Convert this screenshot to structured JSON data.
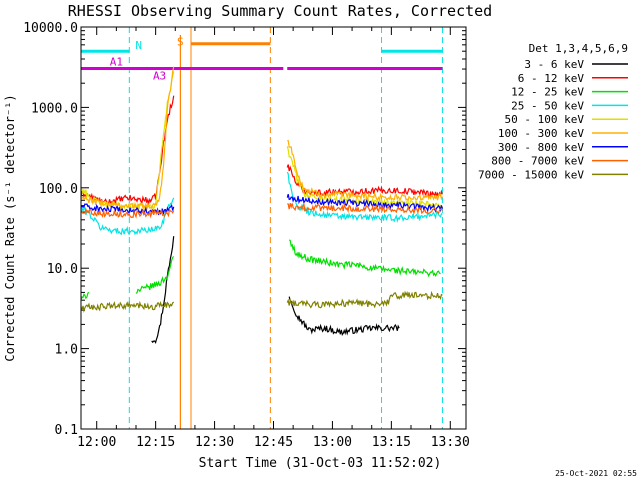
{
  "chart_data": {
    "type": "line",
    "title": "RHESSI Observing Summary Count Rates, Corrected",
    "xlabel": "Start Time (31-Oct-03 11:52:02)",
    "ylabel": "Corrected Count Rate (s⁻¹ detector⁻¹)",
    "yscale": "log",
    "ylim": [
      0.1,
      10000
    ],
    "xlim_minutes": [
      -4,
      94
    ],
    "x_ticks": [
      {
        "m": 0,
        "label": "12:00"
      },
      {
        "m": 15,
        "label": "12:15"
      },
      {
        "m": 30,
        "label": "12:30"
      },
      {
        "m": 45,
        "label": "12:45"
      },
      {
        "m": 60,
        "label": "13:00"
      },
      {
        "m": 75,
        "label": "13:15"
      },
      {
        "m": 90,
        "label": "13:30"
      }
    ],
    "y_ticks": [
      {
        "v": 0.1,
        "label": "0.1"
      },
      {
        "v": 1,
        "label": "1.0"
      },
      {
        "v": 10,
        "label": "10.0"
      },
      {
        "v": 100,
        "label": "100.0"
      },
      {
        "v": 1000,
        "label": "1000.0"
      },
      {
        "v": 10000,
        "label": "10000.0"
      }
    ],
    "legend_title": "Det 1,3,4,5,6,9",
    "legend_placement": "right",
    "timestamp": "25-Oct-2021 02:55",
    "annotations": {
      "night": {
        "label": "N",
        "color": "#00e5e5",
        "level": 5000,
        "intervals": [
          [
            -4,
            8.3
          ],
          [
            72.5,
            88
          ]
        ],
        "boundaries": [
          -4,
          8.3,
          72.5,
          88
        ]
      },
      "saa": {
        "label": "S",
        "color": "#ff8000",
        "level": 6200,
        "intervals": [
          [
            24,
            44.2
          ]
        ],
        "boundaries": [
          24,
          44.2
        ]
      },
      "attenuator": {
        "labels": [
          "A1",
          "A3"
        ],
        "color": "#d000d0",
        "level": 3050,
        "intervals": [
          [
            -4,
            47.5
          ],
          [
            48.5,
            88
          ]
        ],
        "label_m": [
          5,
          16
        ]
      },
      "markers": [
        {
          "m": 21.3,
          "color": "#ff8000",
          "style": "solid"
        }
      ]
    },
    "series": [
      {
        "name": "3 - 6 keV",
        "color": "#000000",
        "points": [
          [
            14,
            1.3
          ],
          [
            15,
            1.3
          ],
          [
            16,
            1.8
          ],
          [
            17,
            3.5
          ],
          [
            18,
            8
          ],
          [
            19,
            15
          ],
          [
            19.6,
            25
          ],
          [
            49,
            4.5
          ],
          [
            51,
            2.6
          ],
          [
            54,
            1.7
          ],
          [
            58,
            1.8
          ],
          [
            62,
            1.6
          ],
          [
            66,
            1.7
          ],
          [
            70,
            1.8
          ],
          [
            74,
            1.8
          ],
          [
            77,
            1.8
          ]
        ]
      },
      {
        "name": "6 - 12 keV",
        "color": "#ff0000",
        "points": [
          [
            -4,
            80
          ],
          [
            -3,
            85
          ],
          [
            -1,
            75
          ],
          [
            2,
            65
          ],
          [
            5,
            70
          ],
          [
            8,
            75
          ],
          [
            10,
            72
          ],
          [
            13,
            70
          ],
          [
            14,
            70
          ],
          [
            15,
            78
          ],
          [
            16,
            150
          ],
          [
            17,
            350
          ],
          [
            18,
            700
          ],
          [
            19,
            1100
          ],
          [
            19.6,
            1400
          ],
          [
            48.5,
            190
          ],
          [
            49.5,
            160
          ],
          [
            51,
            110
          ],
          [
            53,
            92
          ],
          [
            56,
            87
          ],
          [
            60,
            89
          ],
          [
            65,
            90
          ],
          [
            70,
            92
          ],
          [
            75,
            93
          ],
          [
            80,
            90
          ],
          [
            85,
            85
          ],
          [
            88,
            83
          ]
        ]
      },
      {
        "name": "12 - 25 keV",
        "color": "#00e000",
        "points": [
          [
            -4,
            4
          ],
          [
            -2,
            5
          ],
          [
            10,
            5.2
          ],
          [
            12,
            5.5
          ],
          [
            14,
            6
          ],
          [
            16,
            6.5
          ],
          [
            18,
            8
          ],
          [
            19.6,
            14
          ],
          [
            49,
            22
          ],
          [
            51,
            15
          ],
          [
            54,
            13
          ],
          [
            58,
            12
          ],
          [
            62,
            11
          ],
          [
            66,
            11
          ],
          [
            70,
            10
          ],
          [
            75,
            9.5
          ],
          [
            80,
            9
          ],
          [
            85,
            8.8
          ],
          [
            87.5,
            8.5
          ]
        ]
      },
      {
        "name": "25 - 50 keV",
        "color": "#00e5e5",
        "points": [
          [
            -4,
            55
          ],
          [
            -2,
            48
          ],
          [
            1,
            32
          ],
          [
            5,
            29
          ],
          [
            10,
            29
          ],
          [
            14,
            30
          ],
          [
            16,
            32
          ],
          [
            17,
            40
          ],
          [
            18,
            55
          ],
          [
            19.6,
            75
          ],
          [
            48.5,
            160
          ],
          [
            49.5,
            95
          ],
          [
            51,
            60
          ],
          [
            54,
            50
          ],
          [
            58,
            46
          ],
          [
            62,
            44
          ],
          [
            66,
            43
          ],
          [
            70,
            43
          ],
          [
            75,
            42
          ],
          [
            80,
            43
          ],
          [
            84,
            45
          ],
          [
            88,
            47
          ]
        ]
      },
      {
        "name": "50 - 100 keV",
        "color": "#e0e000",
        "points": [
          [
            -4,
            95
          ],
          [
            -3,
            90
          ],
          [
            -1,
            70
          ],
          [
            2,
            62
          ],
          [
            5,
            60
          ],
          [
            8,
            60
          ],
          [
            10,
            58
          ],
          [
            13,
            57
          ],
          [
            15,
            60
          ],
          [
            16,
            170
          ],
          [
            17,
            500
          ],
          [
            18,
            1100
          ],
          [
            19.6,
            2800
          ],
          [
            48.5,
            300
          ],
          [
            49.5,
            230
          ],
          [
            51,
            130
          ],
          [
            53,
            85
          ],
          [
            56,
            75
          ],
          [
            60,
            72
          ],
          [
            65,
            70
          ],
          [
            70,
            68
          ],
          [
            75,
            66
          ],
          [
            80,
            64
          ],
          [
            85,
            62
          ],
          [
            88,
            60
          ]
        ]
      },
      {
        "name": "100 - 300 keV",
        "color": "#ffb000",
        "points": [
          [
            -4,
            75
          ],
          [
            -1,
            68
          ],
          [
            2,
            64
          ],
          [
            5,
            61
          ],
          [
            8,
            60
          ],
          [
            12,
            59
          ],
          [
            15,
            60
          ],
          [
            16,
            70
          ],
          [
            17,
            200
          ],
          [
            18,
            1000
          ],
          [
            19.6,
            3200
          ],
          [
            48.5,
            380
          ],
          [
            49.5,
            320
          ],
          [
            51,
            150
          ],
          [
            53,
            95
          ],
          [
            56,
            85
          ],
          [
            60,
            82
          ],
          [
            65,
            80
          ],
          [
            70,
            78
          ],
          [
            75,
            76
          ],
          [
            80,
            75
          ],
          [
            85,
            75
          ],
          [
            88,
            78
          ]
        ]
      },
      {
        "name": "300 - 800 keV",
        "color": "#0000ff",
        "points": [
          [
            -4,
            60
          ],
          [
            -1,
            56
          ],
          [
            2,
            54
          ],
          [
            5,
            53
          ],
          [
            8,
            52
          ],
          [
            12,
            51
          ],
          [
            16,
            50
          ],
          [
            18,
            52
          ],
          [
            19.6,
            58
          ],
          [
            48.5,
            80
          ],
          [
            50,
            75
          ],
          [
            53,
            70
          ],
          [
            57,
            68
          ],
          [
            62,
            66
          ],
          [
            67,
            64
          ],
          [
            72,
            62
          ],
          [
            77,
            60
          ],
          [
            82,
            58
          ],
          [
            88,
            55
          ]
        ]
      },
      {
        "name": "800 - 7000 keV",
        "color": "#ff6000",
        "points": [
          [
            -4,
            52
          ],
          [
            -1,
            50
          ],
          [
            2,
            48
          ],
          [
            5,
            48
          ],
          [
            8,
            47
          ],
          [
            12,
            47
          ],
          [
            16,
            48
          ],
          [
            18,
            49
          ],
          [
            19.6,
            52
          ],
          [
            48.5,
            60
          ],
          [
            50,
            58
          ],
          [
            53,
            57
          ],
          [
            57,
            56
          ],
          [
            62,
            56
          ],
          [
            67,
            55
          ],
          [
            72,
            55
          ],
          [
            77,
            54
          ],
          [
            82,
            53
          ],
          [
            88,
            52
          ]
        ]
      },
      {
        "name": "7000 - 15000 keV",
        "color": "#808000",
        "points": [
          [
            -4,
            3.2
          ],
          [
            0,
            3.3
          ],
          [
            5,
            3.4
          ],
          [
            10,
            3.4
          ],
          [
            14,
            3.3
          ],
          [
            16,
            3.4
          ],
          [
            18,
            3.5
          ],
          [
            19.6,
            3.8
          ],
          [
            48.5,
            3.8
          ],
          [
            52,
            3.6
          ],
          [
            56,
            3.5
          ],
          [
            60,
            3.6
          ],
          [
            65,
            3.7
          ],
          [
            70,
            3.6
          ],
          [
            74,
            3.7
          ],
          [
            75,
            4.5
          ],
          [
            80,
            4.6
          ],
          [
            85,
            4.5
          ],
          [
            88,
            4.6
          ]
        ]
      }
    ]
  }
}
